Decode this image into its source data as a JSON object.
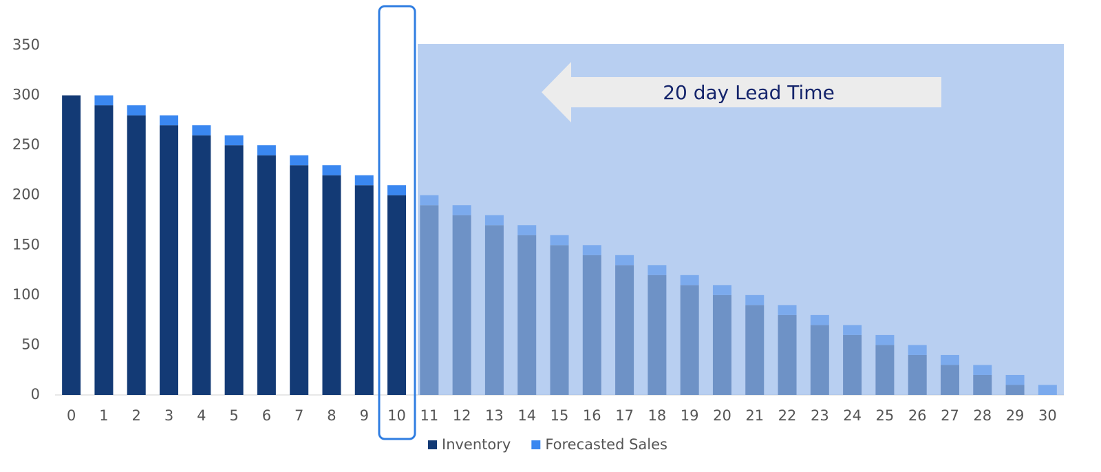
{
  "chart_data": {
    "type": "stacked_bar",
    "categories": [
      "0",
      "1",
      "2",
      "3",
      "4",
      "5",
      "6",
      "7",
      "8",
      "9",
      "10",
      "11",
      "12",
      "13",
      "14",
      "15",
      "16",
      "17",
      "18",
      "19",
      "20",
      "21",
      "22",
      "23",
      "24",
      "25",
      "26",
      "27",
      "28",
      "29",
      "30"
    ],
    "series": [
      {
        "name": "Inventory",
        "color": "#133a75",
        "values": [
          300,
          290,
          280,
          270,
          260,
          250,
          240,
          230,
          220,
          210,
          200,
          190,
          180,
          170,
          160,
          150,
          140,
          130,
          120,
          110,
          100,
          90,
          80,
          70,
          60,
          50,
          40,
          30,
          20,
          10,
          0
        ]
      },
      {
        "name": "Forecasted Sales",
        "color": "#3a87f0",
        "values": [
          0,
          10,
          10,
          10,
          10,
          10,
          10,
          10,
          10,
          10,
          10,
          10,
          10,
          10,
          10,
          10,
          10,
          10,
          10,
          10,
          10,
          10,
          10,
          10,
          10,
          10,
          10,
          10,
          10,
          10,
          10
        ]
      }
    ],
    "ylim": [
      0,
      350
    ],
    "yticks": [
      0,
      50,
      100,
      150,
      200,
      250,
      300,
      350
    ],
    "annotation": "20 day Lead Time",
    "legend": "bottom"
  }
}
